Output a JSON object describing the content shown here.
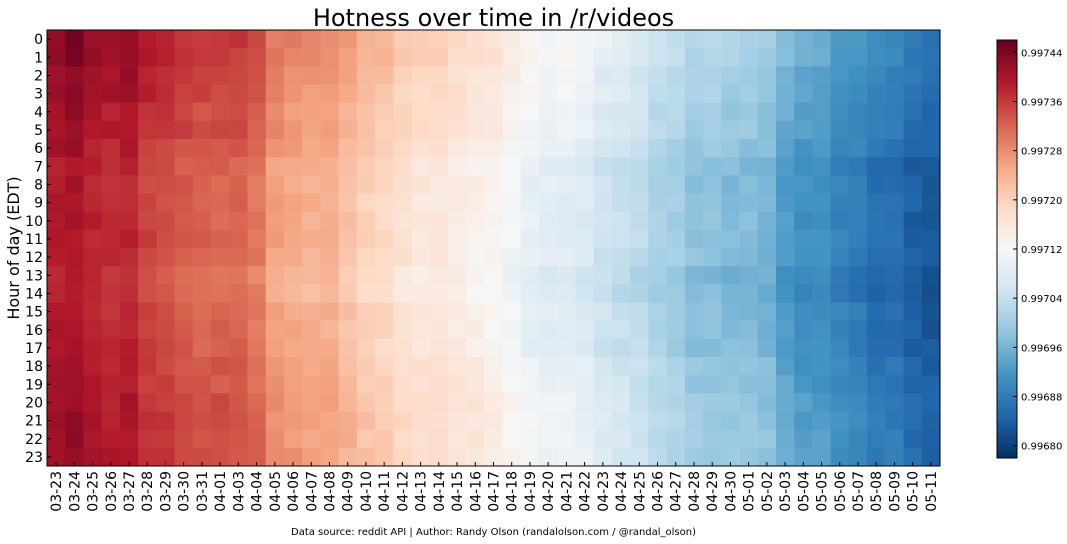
{
  "chart_data": {
    "type": "heatmap",
    "title": "Hotness over time in /r/videos",
    "ylabel": "Hour of day (EDT)",
    "xlabel": "",
    "source_note": "Data source: reddit API | Author: Randy Olson (randalolson.com / @randal_olson)",
    "x_labels": [
      "03-23",
      "03-24",
      "03-25",
      "03-26",
      "03-27",
      "03-28",
      "03-29",
      "03-30",
      "03-31",
      "04-01",
      "04-03",
      "04-04",
      "04-05",
      "04-06",
      "04-07",
      "04-08",
      "04-09",
      "04-10",
      "04-11",
      "04-12",
      "04-13",
      "04-14",
      "04-15",
      "04-16",
      "04-17",
      "04-18",
      "04-19",
      "04-20",
      "04-21",
      "04-22",
      "04-23",
      "04-24",
      "04-25",
      "04-26",
      "04-27",
      "04-28",
      "04-29",
      "04-30",
      "05-01",
      "05-02",
      "05-03",
      "05-04",
      "05-05",
      "05-06",
      "05-07",
      "05-08",
      "05-09",
      "05-10",
      "05-11"
    ],
    "y_labels": [
      "0",
      "1",
      "2",
      "3",
      "4",
      "5",
      "6",
      "7",
      "8",
      "9",
      "10",
      "11",
      "12",
      "13",
      "14",
      "15",
      "16",
      "17",
      "18",
      "19",
      "20",
      "21",
      "22",
      "23"
    ],
    "colorbar": {
      "min": 0.99678,
      "max": 0.99746,
      "ticks": [
        "0.99680",
        "0.99688",
        "0.99696",
        "0.99704",
        "0.99712",
        "0.99720",
        "0.99728",
        "0.99736",
        "0.99744"
      ],
      "colormap": [
        "#053061",
        "#2166ac",
        "#4393c3",
        "#92c5de",
        "#d1e5f0",
        "#f7f7f7",
        "#fddbc7",
        "#f4a582",
        "#d6604d",
        "#b2182b",
        "#67001f"
      ]
    },
    "column_base": [
      0.9974,
      0.99741,
      0.99739,
      0.99738,
      0.99739,
      0.99736,
      0.99735,
      0.99734,
      0.99733,
      0.99733,
      0.99733,
      0.99731,
      0.99727,
      0.99726,
      0.99725,
      0.99725,
      0.99723,
      0.99721,
      0.9972,
      0.99718,
      0.99717,
      0.99717,
      0.99716,
      0.99715,
      0.99714,
      0.99712,
      0.9971,
      0.99709,
      0.99709,
      0.99708,
      0.99706,
      0.99705,
      0.99704,
      0.99702,
      0.99701,
      0.99699,
      0.99699,
      0.99698,
      0.99698,
      0.99697,
      0.99694,
      0.99692,
      0.99692,
      0.9969,
      0.99689,
      0.99687,
      0.99687,
      0.99685,
      0.99684
    ],
    "hour_offset": [
      3e-05,
      3e-05,
      2e-05,
      2e-05,
      1e-05,
      1e-05,
      0.0,
      -1e-05,
      -1e-05,
      -1e-05,
      -1e-05,
      -1e-05,
      -1e-05,
      -2e-05,
      -2e-05,
      -1e-05,
      -1e-05,
      -1e-05,
      0.0,
      0.0,
      1e-05,
      1e-05,
      1e-05,
      1e-05
    ]
  }
}
